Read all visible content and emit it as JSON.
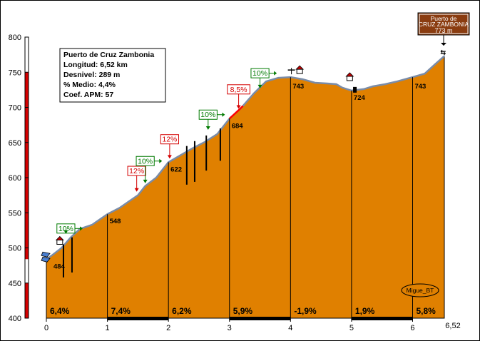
{
  "chart_data": {
    "type": "area",
    "title_box": {
      "name": "Puerto de Cruz Zambonia",
      "longitud": "Longitud: 6,52 km",
      "desnivel": "Desnivel: 289 m",
      "medio": "% Medio: 4,4%",
      "coef": "Coef. APM: 57"
    },
    "summit_sign": {
      "line1": "Puerto de",
      "line2": "CRUZ ZAMBONIA",
      "line3": "773 m"
    },
    "author": "Migue_BT",
    "xlim": [
      0,
      6.52
    ],
    "ylim": [
      400,
      800
    ],
    "x_ticks": [
      "0",
      "1",
      "2",
      "3",
      "4",
      "5",
      "6"
    ],
    "x_end_label": "6,52",
    "y_ticks": [
      "400",
      "450",
      "500",
      "550",
      "600",
      "650",
      "700",
      "750",
      "800"
    ],
    "profile": [
      {
        "x": 0.0,
        "y": 484
      },
      {
        "x": 0.1,
        "y": 490
      },
      {
        "x": 0.25,
        "y": 500
      },
      {
        "x": 0.4,
        "y": 515
      },
      {
        "x": 0.55,
        "y": 527
      },
      {
        "x": 0.75,
        "y": 533
      },
      {
        "x": 1.0,
        "y": 548
      },
      {
        "x": 1.2,
        "y": 557
      },
      {
        "x": 1.35,
        "y": 566
      },
      {
        "x": 1.5,
        "y": 575
      },
      {
        "x": 1.62,
        "y": 588
      },
      {
        "x": 1.8,
        "y": 600
      },
      {
        "x": 2.0,
        "y": 622
      },
      {
        "x": 2.2,
        "y": 632
      },
      {
        "x": 2.4,
        "y": 642
      },
      {
        "x": 2.6,
        "y": 651
      },
      {
        "x": 2.8,
        "y": 662
      },
      {
        "x": 3.0,
        "y": 684
      },
      {
        "x": 3.2,
        "y": 700
      },
      {
        "x": 3.4,
        "y": 720
      },
      {
        "x": 3.6,
        "y": 737
      },
      {
        "x": 3.8,
        "y": 742
      },
      {
        "x": 4.0,
        "y": 743
      },
      {
        "x": 4.2,
        "y": 740
      },
      {
        "x": 4.4,
        "y": 735
      },
      {
        "x": 4.6,
        "y": 734
      },
      {
        "x": 4.75,
        "y": 733
      },
      {
        "x": 4.85,
        "y": 728
      },
      {
        "x": 5.0,
        "y": 724
      },
      {
        "x": 5.2,
        "y": 726
      },
      {
        "x": 5.35,
        "y": 730
      },
      {
        "x": 5.55,
        "y": 733
      },
      {
        "x": 5.75,
        "y": 737
      },
      {
        "x": 6.0,
        "y": 743
      },
      {
        "x": 6.2,
        "y": 748
      },
      {
        "x": 6.35,
        "y": 760
      },
      {
        "x": 6.52,
        "y": 773
      }
    ],
    "km_elevations": [
      {
        "x": 0,
        "label": "484"
      },
      {
        "x": 1,
        "label": "548"
      },
      {
        "x": 2,
        "label": "622"
      },
      {
        "x": 3,
        "label": "684"
      },
      {
        "x": 4,
        "label": "743"
      },
      {
        "x": 5,
        "label": "724"
      },
      {
        "x": 6,
        "label": "743"
      }
    ],
    "segment_gradients": [
      {
        "x": 0,
        "label": "6,4%"
      },
      {
        "x": 1,
        "label": "7,4%"
      },
      {
        "x": 2,
        "label": "6,2%"
      },
      {
        "x": 3,
        "label": "5,9%"
      },
      {
        "x": 4,
        "label": "-1,9%"
      },
      {
        "x": 5,
        "label": "1,9%"
      },
      {
        "x": 6,
        "label": "5,8%"
      }
    ],
    "ramp_markers": [
      {
        "label": "10%",
        "color": "#007a00",
        "x": 0.32,
        "y_point": 520,
        "y_label": 521
      },
      {
        "label": "12%",
        "color": "#d40000",
        "x": 1.48,
        "y_point": 580,
        "y_label": 603
      },
      {
        "label": "10%",
        "color": "#007a00",
        "x": 1.62,
        "y_point": 592,
        "y_label": 617
      },
      {
        "label": "12%",
        "color": "#d40000",
        "x": 2.02,
        "y_point": 627,
        "y_label": 648
      },
      {
        "label": "10%",
        "color": "#007a00",
        "x": 2.65,
        "y_point": 668,
        "y_label": 683
      },
      {
        "label": "8,5%",
        "color": "#d40000",
        "x": 3.15,
        "y_point": 698,
        "y_label": 719
      },
      {
        "label": "10%",
        "color": "#007a00",
        "x": 3.5,
        "y_point": 727,
        "y_label": 742
      }
    ],
    "colors": {
      "fill": "#e08000",
      "profile_line": "#7a8ca8",
      "steep_section": "#ff0000",
      "green_label": "#007a00",
      "red_label": "#d40000",
      "sign_bg": "#8a3c10",
      "axis_red": "#d40000"
    }
  }
}
